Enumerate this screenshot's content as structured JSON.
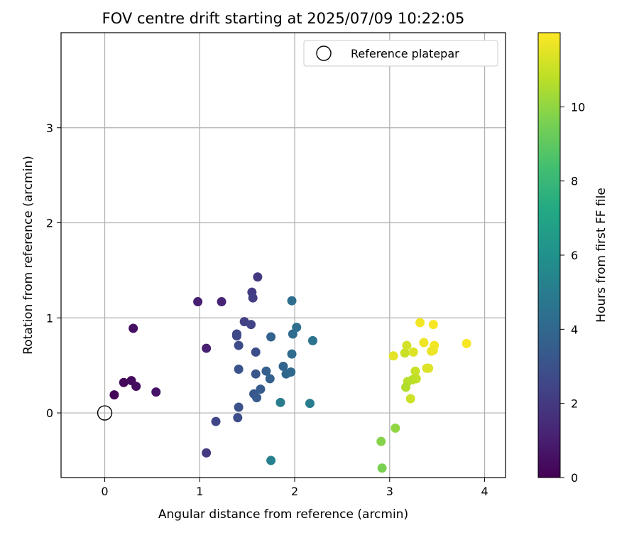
{
  "chart_data": {
    "type": "scatter",
    "title": "FOV centre drift starting at 2025/07/09 10:22:05",
    "xlabel": "Angular distance from reference (arcmin)",
    "ylabel": "Rotation from reference (arcmin)",
    "xlim": [
      -0.46,
      4.22
    ],
    "ylim": [
      -0.68,
      4.0
    ],
    "xticks": [
      "0",
      "1",
      "2",
      "3",
      "4"
    ],
    "yticks": [
      "0",
      "1",
      "2",
      "3"
    ],
    "xtick_values": [
      0,
      1,
      2,
      3,
      4
    ],
    "ytick_values": [
      0,
      1,
      2,
      3
    ],
    "grid": true,
    "legend": {
      "placement": "top-right",
      "entries": [
        "Reference platepar"
      ]
    },
    "reference_point": {
      "x": 0,
      "y": 0,
      "label": "Reference platepar"
    },
    "colorbar": {
      "label": "Hours from first FF file",
      "colormap": "viridis",
      "range": [
        0,
        12
      ],
      "ticks": [
        "0",
        "2",
        "4",
        "6",
        "8",
        "10"
      ],
      "tick_values": [
        0,
        2,
        4,
        6,
        8,
        10
      ]
    },
    "points": [
      {
        "x": 0.1,
        "y": 0.19,
        "c": 0.1
      },
      {
        "x": 0.2,
        "y": 0.32,
        "c": 0.2
      },
      {
        "x": 0.28,
        "y": 0.34,
        "c": 0.3
      },
      {
        "x": 0.33,
        "y": 0.28,
        "c": 0.4
      },
      {
        "x": 0.3,
        "y": 0.89,
        "c": 0.5
      },
      {
        "x": 0.54,
        "y": 0.22,
        "c": 0.6
      },
      {
        "x": 0.98,
        "y": 1.17,
        "c": 1.0
      },
      {
        "x": 1.07,
        "y": 0.68,
        "c": 1.1
      },
      {
        "x": 1.23,
        "y": 1.17,
        "c": 1.2
      },
      {
        "x": 1.61,
        "y": 1.43,
        "c": 2.0
      },
      {
        "x": 1.55,
        "y": 1.27,
        "c": 2.1
      },
      {
        "x": 1.56,
        "y": 1.21,
        "c": 2.2
      },
      {
        "x": 1.47,
        "y": 0.96,
        "c": 2.3
      },
      {
        "x": 1.54,
        "y": 0.93,
        "c": 2.4
      },
      {
        "x": 1.39,
        "y": 0.83,
        "c": 2.5
      },
      {
        "x": 1.39,
        "y": 0.81,
        "c": 2.6
      },
      {
        "x": 1.41,
        "y": 0.71,
        "c": 2.7
      },
      {
        "x": 1.59,
        "y": 0.64,
        "c": 2.8
      },
      {
        "x": 1.07,
        "y": -0.42,
        "c": 2.0
      },
      {
        "x": 1.17,
        "y": -0.09,
        "c": 2.5
      },
      {
        "x": 1.4,
        "y": -0.05,
        "c": 2.9
      },
      {
        "x": 1.41,
        "y": 0.06,
        "c": 3.0
      },
      {
        "x": 1.41,
        "y": 0.46,
        "c": 3.1
      },
      {
        "x": 1.59,
        "y": 0.41,
        "c": 3.2
      },
      {
        "x": 1.57,
        "y": 0.2,
        "c": 3.3
      },
      {
        "x": 1.6,
        "y": 0.16,
        "c": 3.4
      },
      {
        "x": 1.64,
        "y": 0.25,
        "c": 3.5
      },
      {
        "x": 1.7,
        "y": 0.44,
        "c": 3.6
      },
      {
        "x": 1.74,
        "y": 0.36,
        "c": 3.7
      },
      {
        "x": 1.75,
        "y": 0.8,
        "c": 3.8
      },
      {
        "x": 1.88,
        "y": 0.49,
        "c": 3.9
      },
      {
        "x": 1.91,
        "y": 0.41,
        "c": 4.0
      },
      {
        "x": 1.96,
        "y": 0.43,
        "c": 4.1
      },
      {
        "x": 1.97,
        "y": 0.62,
        "c": 4.2
      },
      {
        "x": 1.98,
        "y": 0.83,
        "c": 4.2
      },
      {
        "x": 2.02,
        "y": 0.9,
        "c": 4.3
      },
      {
        "x": 1.97,
        "y": 1.18,
        "c": 4.3
      },
      {
        "x": 2.19,
        "y": 0.76,
        "c": 4.6
      },
      {
        "x": 1.85,
        "y": 0.11,
        "c": 5.0
      },
      {
        "x": 2.16,
        "y": 0.1,
        "c": 5.1
      },
      {
        "x": 1.75,
        "y": -0.5,
        "c": 5.2
      },
      {
        "x": 2.92,
        "y": -0.58,
        "c": 9.6
      },
      {
        "x": 2.91,
        "y": -0.3,
        "c": 9.8
      },
      {
        "x": 3.06,
        "y": -0.16,
        "c": 10.0
      },
      {
        "x": 3.04,
        "y": 0.6,
        "c": 11.5
      },
      {
        "x": 3.16,
        "y": 0.63,
        "c": 11.0
      },
      {
        "x": 3.18,
        "y": 0.71,
        "c": 11.2
      },
      {
        "x": 3.25,
        "y": 0.64,
        "c": 11.4
      },
      {
        "x": 3.32,
        "y": 0.95,
        "c": 11.8
      },
      {
        "x": 3.36,
        "y": 0.74,
        "c": 11.7
      },
      {
        "x": 3.46,
        "y": 0.93,
        "c": 11.9
      },
      {
        "x": 3.47,
        "y": 0.71,
        "c": 11.8
      },
      {
        "x": 3.44,
        "y": 0.65,
        "c": 11.6
      },
      {
        "x": 3.46,
        "y": 0.66,
        "c": 11.7
      },
      {
        "x": 3.39,
        "y": 0.47,
        "c": 11.3
      },
      {
        "x": 3.41,
        "y": 0.47,
        "c": 11.4
      },
      {
        "x": 3.27,
        "y": 0.44,
        "c": 11.0
      },
      {
        "x": 3.28,
        "y": 0.36,
        "c": 10.9
      },
      {
        "x": 3.24,
        "y": 0.35,
        "c": 10.8
      },
      {
        "x": 3.19,
        "y": 0.33,
        "c": 10.7
      },
      {
        "x": 3.17,
        "y": 0.27,
        "c": 10.6
      },
      {
        "x": 3.22,
        "y": 0.15,
        "c": 11.1
      },
      {
        "x": 3.81,
        "y": 0.73,
        "c": 11.9
      }
    ]
  }
}
